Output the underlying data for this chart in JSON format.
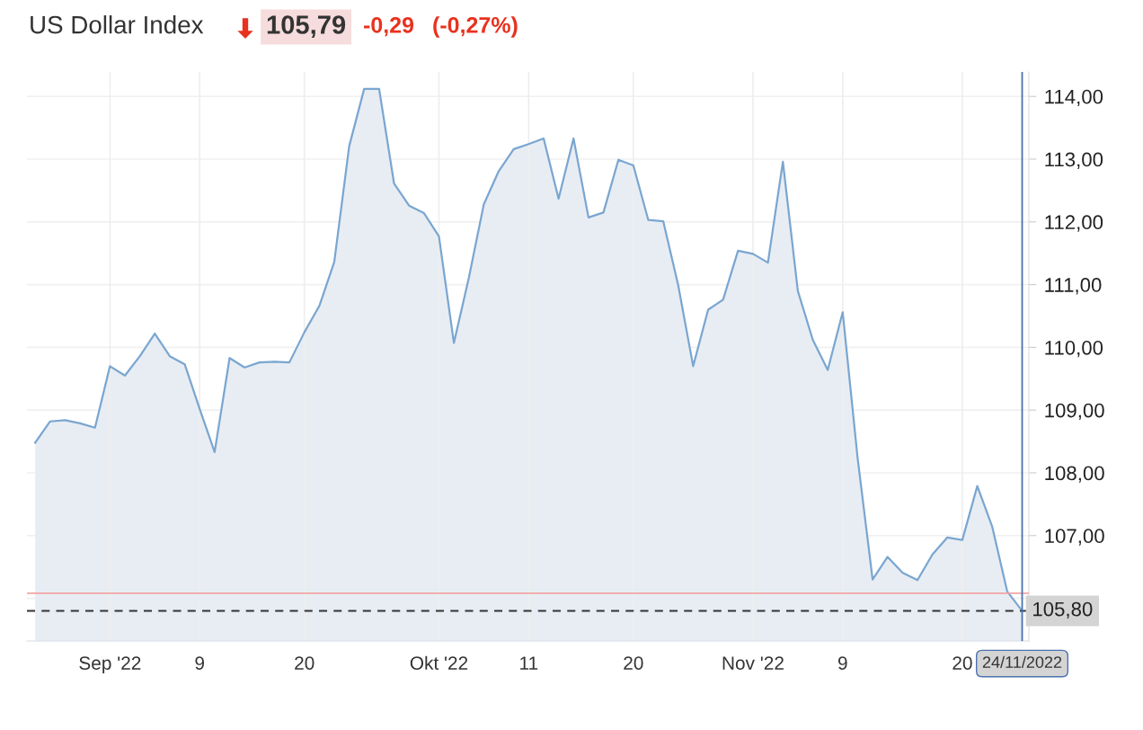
{
  "chart_data": {
    "type": "area",
    "title": "US Dollar Index",
    "annotations": [
      "105,79",
      "-0,29",
      "(-0,27%)"
    ],
    "categories": [
      null,
      null,
      null,
      null,
      null,
      "Sep '22",
      null,
      null,
      null,
      null,
      null,
      "9",
      null,
      null,
      null,
      null,
      null,
      null,
      "20",
      null,
      null,
      null,
      null,
      null,
      null,
      null,
      null,
      "Okt '22",
      null,
      null,
      null,
      null,
      null,
      "11",
      null,
      null,
      null,
      null,
      null,
      null,
      "20",
      null,
      null,
      null,
      null,
      null,
      null,
      null,
      "Nov '22",
      null,
      null,
      null,
      null,
      null,
      "9",
      null,
      null,
      null,
      null,
      null,
      null,
      null,
      "20",
      null,
      null,
      null,
      "24/11/2022"
    ],
    "series": [
      {
        "color": "#7aa6d0",
        "values": [
          108.48,
          108.82,
          108.84,
          108.79,
          108.72,
          109.7,
          109.55,
          109.86,
          110.22,
          109.86,
          109.73,
          109.02,
          108.33,
          109.83,
          109.68,
          109.76,
          109.77,
          109.76,
          110.24,
          110.66,
          111.36,
          113.21,
          114.12,
          114.12,
          112.61,
          112.26,
          112.14,
          111.77,
          110.07,
          111.11,
          112.28,
          112.81,
          113.16,
          113.24,
          113.33,
          112.37,
          113.33,
          112.07,
          112.15,
          112.99,
          112.9,
          112.03,
          112.01,
          110.99,
          109.7,
          110.6,
          110.76,
          111.54,
          111.49,
          111.35,
          112.96,
          110.9,
          110.12,
          109.64,
          110.56,
          108.23,
          106.3,
          106.66,
          106.41,
          106.29,
          106.7,
          106.97,
          106.93,
          107.79,
          107.14,
          106.11,
          105.8
        ]
      }
    ],
    "ylim": [
      105.32,
      114.39
    ],
    "yticks": [
      {
        "value": 106,
        "label": null
      },
      {
        "value": 107,
        "label": "107,00"
      },
      {
        "value": 108,
        "label": "108,00"
      },
      {
        "value": 109,
        "label": "109,00"
      },
      {
        "value": 110,
        "label": "110,00"
      },
      {
        "value": 111,
        "label": "111,00"
      },
      {
        "value": 112,
        "label": "112,00"
      },
      {
        "value": 113,
        "label": "113,00"
      },
      {
        "value": 114,
        "label": "114,00"
      }
    ],
    "ref_lines": [
      {
        "axis": "y",
        "value": 106.08,
        "color": "#f2a5a5",
        "line_style": "solid"
      },
      {
        "axis": "y",
        "value": 105.8,
        "label": "105,80",
        "color": "#333333",
        "line_style": "dashed"
      },
      {
        "axis": "x",
        "value": "24/11/2022",
        "color": "#4a72b0",
        "line_style": "solid"
      }
    ],
    "grid": true
  }
}
